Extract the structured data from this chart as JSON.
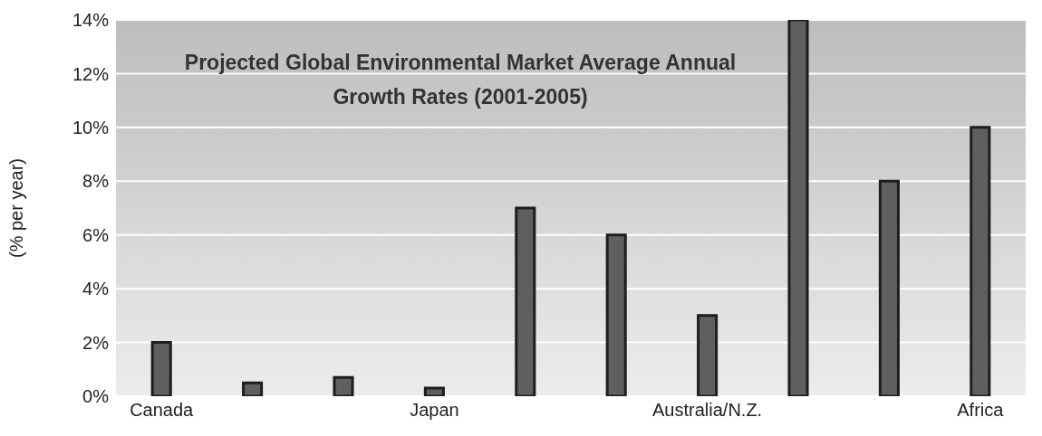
{
  "chart_data": {
    "type": "bar",
    "title": "Projected Global Environmental Market Average Annual Growth Rates (2001-2005)",
    "ylabel": "(% per year)",
    "categories": [
      "Canada",
      null,
      null,
      "Japan",
      null,
      null,
      "Australia/N.Z.",
      null,
      null,
      "Africa"
    ],
    "values": [
      2,
      0.5,
      0.7,
      0.3,
      7,
      6,
      3,
      14,
      8,
      10
    ],
    "color": "#5f5f5f",
    "ylim": [
      0,
      14
    ],
    "yticks": [
      {
        "value": 0,
        "label": "0%"
      },
      {
        "value": 2,
        "label": "2%"
      },
      {
        "value": 4,
        "label": "4%"
      },
      {
        "value": 6,
        "label": "6%"
      },
      {
        "value": 8,
        "label": "8%"
      },
      {
        "value": 10,
        "label": "10%"
      },
      {
        "value": 12,
        "label": "12%"
      },
      {
        "value": 14,
        "label": "14%"
      }
    ],
    "grid": "y"
  }
}
